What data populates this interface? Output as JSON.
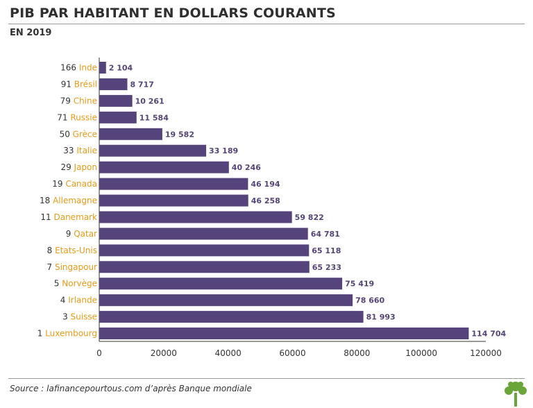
{
  "header": {
    "title": "PIB PAR HABITANT EN DOLLARS COURANTS",
    "subtitle": "EN 2019"
  },
  "footer": {
    "source": "Source : lafinancepourtous.com d’après Banque mondiale"
  },
  "colors": {
    "bar": "#54447b",
    "country_label": "#e89a16",
    "rank_label": "#333333",
    "value_label": "#54447b",
    "axis": "#333333",
    "logo": "#6aa539"
  },
  "chart_data": {
    "type": "bar",
    "orientation": "horizontal",
    "title": "PIB PAR HABITANT EN DOLLARS COURANTS",
    "subtitle": "EN 2019",
    "categories": [
      "Inde",
      "Brésil",
      "Chine",
      "Russie",
      "Grèce",
      "Italie",
      "Japon",
      "Canada",
      "Allemagne",
      "Danemark",
      "Qatar",
      "Etats-Unis",
      "Singapour",
      "Norvège",
      "Irlande",
      "Suisse",
      "Luxembourg"
    ],
    "ranks": [
      "166",
      "91",
      "79",
      "71",
      "50",
      "33",
      "29",
      "19",
      "18",
      "11",
      "9",
      "8",
      "7",
      "5",
      "4",
      "3",
      "1"
    ],
    "values": [
      2104,
      8717,
      10261,
      11584,
      19582,
      33189,
      40246,
      46194,
      46258,
      59822,
      64781,
      65118,
      65233,
      75419,
      78660,
      81993,
      114704
    ],
    "value_labels": [
      "2 104",
      "8 717",
      "10 261",
      "11 584",
      "19 582",
      "33 189",
      "40 246",
      "46 194",
      "46 258",
      "59 822",
      "64 781",
      "65 118",
      "65 233",
      "75 419",
      "78 660",
      "81 993",
      "114 704"
    ],
    "xlim": [
      0,
      120000
    ],
    "xticks": [
      "0",
      "20000",
      "40000",
      "60000",
      "80000",
      "100000",
      "120000"
    ],
    "xlabel": "",
    "ylabel": "",
    "grid": false,
    "legend": "none"
  }
}
